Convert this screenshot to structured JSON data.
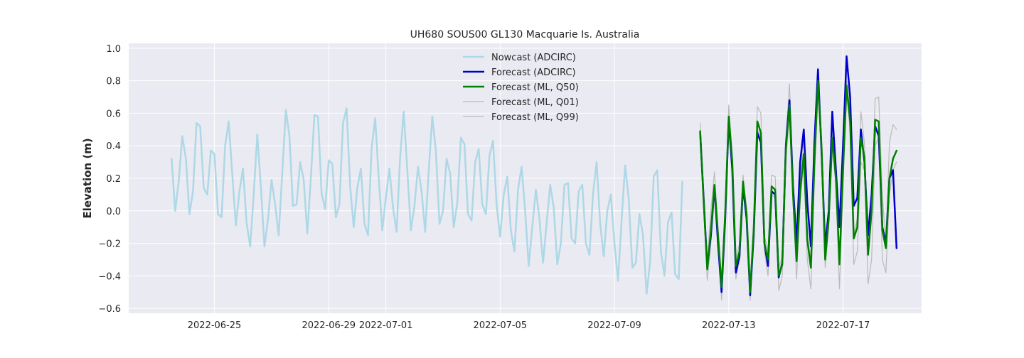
{
  "chart_data": {
    "type": "line",
    "title": "UH680 SOUS00 GL130 Macquarie Is. Australia",
    "xlabel": "",
    "ylabel": "Elevation (m)",
    "xlim": [
      "2022-06-22T00:00",
      "2022-07-19T18:00"
    ],
    "ylim": [
      -0.63,
      1.03
    ],
    "x_ticks": [
      "2022-06-25",
      "2022-06-29",
      "2022-07-01",
      "2022-07-05",
      "2022-07-09",
      "2022-07-13",
      "2022-07-17"
    ],
    "y_ticks": [
      -0.6,
      -0.4,
      -0.2,
      0.0,
      0.2,
      0.4,
      0.6,
      0.8,
      1.0
    ],
    "grid": true,
    "legend_position": "top-center",
    "series": [
      {
        "name": "Nowcast (ADCIRC)",
        "color": "#add8e6",
        "start": "2022-06-23T12:00",
        "step_hours": 3,
        "values": [
          0.32,
          0.0,
          0.18,
          0.46,
          0.32,
          -0.02,
          0.12,
          0.54,
          0.52,
          0.14,
          0.1,
          0.37,
          0.35,
          -0.02,
          -0.04,
          0.4,
          0.55,
          0.22,
          -0.09,
          0.12,
          0.26,
          -0.07,
          -0.22,
          0.1,
          0.47,
          0.15,
          -0.22,
          -0.05,
          0.19,
          0.04,
          -0.15,
          0.24,
          0.62,
          0.46,
          0.03,
          0.04,
          0.3,
          0.19,
          -0.14,
          0.2,
          0.59,
          0.58,
          0.11,
          0.01,
          0.31,
          0.29,
          -0.04,
          0.04,
          0.54,
          0.63,
          0.15,
          -0.1,
          0.14,
          0.26,
          -0.08,
          -0.15,
          0.38,
          0.57,
          0.2,
          -0.12,
          0.08,
          0.26,
          0.02,
          -0.13,
          0.33,
          0.61,
          0.25,
          -0.12,
          0.03,
          0.27,
          0.12,
          -0.13,
          0.25,
          0.58,
          0.37,
          -0.08,
          0.0,
          0.32,
          0.23,
          -0.1,
          0.05,
          0.45,
          0.41,
          -0.02,
          -0.06,
          0.3,
          0.38,
          0.04,
          -0.02,
          0.34,
          0.43,
          0.04,
          -0.16,
          0.1,
          0.21,
          -0.12,
          -0.25,
          0.13,
          0.27,
          0.0,
          -0.34,
          -0.1,
          0.13,
          -0.05,
          -0.32,
          -0.08,
          0.16,
          0.02,
          -0.33,
          -0.2,
          0.16,
          0.17,
          -0.17,
          -0.2,
          0.12,
          0.16,
          -0.2,
          -0.27,
          0.1,
          0.3,
          -0.08,
          -0.28,
          0.0,
          0.1,
          -0.2,
          -0.43,
          -0.06,
          0.28,
          0.07,
          -0.35,
          -0.32,
          -0.02,
          -0.15,
          -0.51,
          -0.31,
          0.21,
          0.25,
          -0.25,
          -0.4,
          -0.07,
          -0.01,
          -0.39,
          -0.42,
          0.18
        ]
      },
      {
        "name": "Forecast (ADCIRC)",
        "color": "#0000cd",
        "start": "2022-07-12T00:00",
        "step_hours": 3,
        "values": [
          0.48,
          0.07,
          -0.35,
          -0.15,
          0.15,
          -0.2,
          -0.5,
          -0.05,
          0.56,
          0.25,
          -0.38,
          -0.28,
          0.15,
          -0.05,
          -0.52,
          -0.15,
          0.48,
          0.42,
          -0.2,
          -0.34,
          0.12,
          0.1,
          -0.41,
          -0.32,
          0.4,
          0.68,
          0.15,
          -0.2,
          0.3,
          0.5,
          0.05,
          -0.22,
          0.42,
          0.87,
          0.35,
          -0.22,
          0.0,
          0.61,
          0.25,
          -0.1,
          0.4,
          0.95,
          0.7,
          0.03,
          0.08,
          0.5,
          0.3,
          -0.15,
          0.1,
          0.52,
          0.46,
          -0.1,
          -0.2,
          0.2,
          0.25,
          -0.23
        ]
      },
      {
        "name": "Forecast (ML, Q50)",
        "color": "#008000",
        "start": "2022-07-12T00:00",
        "step_hours": 3,
        "values": [
          0.49,
          0.05,
          -0.36,
          -0.12,
          0.16,
          -0.15,
          -0.47,
          -0.02,
          0.58,
          0.3,
          -0.34,
          -0.25,
          0.18,
          -0.02,
          -0.5,
          -0.12,
          0.55,
          0.48,
          -0.2,
          -0.3,
          0.15,
          0.13,
          -0.4,
          -0.33,
          0.38,
          0.65,
          0.1,
          -0.31,
          0.12,
          0.35,
          -0.18,
          -0.35,
          0.3,
          0.8,
          0.38,
          -0.3,
          -0.05,
          0.45,
          0.2,
          -0.33,
          0.25,
          0.77,
          0.55,
          -0.17,
          -0.1,
          0.45,
          0.33,
          -0.27,
          0.0,
          0.56,
          0.55,
          -0.12,
          -0.23,
          0.2,
          0.32,
          0.37
        ]
      },
      {
        "name": "Forecast (ML, Q01)",
        "color": "#bababa",
        "start": "2022-07-12T00:00",
        "step_hours": 3,
        "values": [
          0.48,
          0.02,
          -0.43,
          -0.2,
          0.1,
          -0.2,
          -0.55,
          -0.05,
          0.55,
          0.25,
          -0.42,
          -0.3,
          0.12,
          -0.05,
          -0.55,
          -0.18,
          0.5,
          0.45,
          -0.25,
          -0.4,
          0.1,
          0.08,
          -0.49,
          -0.4,
          0.3,
          0.6,
          0.05,
          -0.42,
          0.05,
          0.3,
          -0.3,
          -0.48,
          0.2,
          0.75,
          0.3,
          -0.35,
          -0.1,
          0.4,
          0.15,
          -0.48,
          0.15,
          0.72,
          0.5,
          -0.33,
          -0.25,
          0.3,
          0.25,
          -0.45,
          -0.3,
          0.4,
          0.45,
          -0.3,
          -0.38,
          0.1,
          0.25,
          0.3
        ]
      },
      {
        "name": "Forecast (ML, Q99)",
        "color": "#bababa",
        "start": "2022-07-12T00:00",
        "step_hours": 3,
        "values": [
          0.54,
          0.1,
          -0.3,
          0.0,
          0.24,
          -0.1,
          -0.42,
          0.05,
          0.65,
          0.35,
          -0.3,
          -0.2,
          0.22,
          0.0,
          -0.45,
          -0.05,
          0.64,
          0.6,
          -0.15,
          -0.25,
          0.22,
          0.21,
          -0.35,
          -0.28,
          0.45,
          0.78,
          0.2,
          -0.28,
          0.2,
          0.45,
          -0.15,
          -0.3,
          0.4,
          0.88,
          0.45,
          -0.25,
          0.0,
          0.5,
          0.3,
          -0.28,
          0.35,
          0.8,
          0.6,
          -0.15,
          -0.05,
          0.61,
          0.42,
          -0.22,
          0.05,
          0.69,
          0.7,
          0.1,
          -0.2,
          0.42,
          0.53,
          0.5
        ]
      }
    ]
  }
}
